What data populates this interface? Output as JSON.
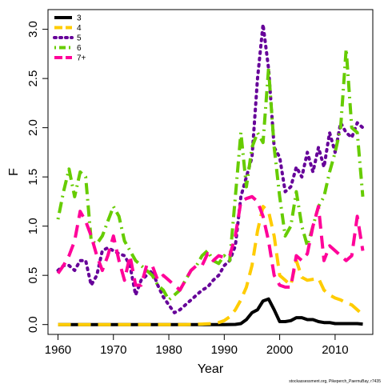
{
  "chart_data": {
    "type": "line",
    "xlabel": "Year",
    "ylabel": "F",
    "xlim": [
      1958.2,
      2016.8
    ],
    "ylim": [
      -0.1,
      3.2
    ],
    "xticks": [
      1960,
      1970,
      1980,
      1990,
      2000,
      2010
    ],
    "yticks": [
      0.0,
      0.5,
      1.0,
      1.5,
      2.0,
      2.5,
      3.0
    ],
    "ytick_labels": [
      "0.0",
      "0.5",
      "1.0",
      "1.5",
      "2.0",
      "2.5",
      "3.0"
    ],
    "legend_position": "top-left",
    "grid": false,
    "credit": "stockassessment.org, Pikeperch_PaernuBay, r7435",
    "series": [
      {
        "name": "3",
        "color": "#000000",
        "dash": "solid",
        "x": [
          1960,
          1965,
          1970,
          1975,
          1980,
          1985,
          1990,
          1992,
          1993,
          1994,
          1995,
          1996,
          1997,
          1998,
          1999,
          2000,
          2001,
          2002,
          2003,
          2004,
          2005,
          2006,
          2007,
          2008,
          2009,
          2010,
          2011,
          2012,
          2013,
          2014,
          2015
        ],
        "values": [
          0,
          0,
          0,
          0,
          0,
          0,
          0,
          0.002,
          0.01,
          0.05,
          0.12,
          0.15,
          0.24,
          0.26,
          0.15,
          0.03,
          0.03,
          0.04,
          0.07,
          0.07,
          0.05,
          0.05,
          0.03,
          0.02,
          0.02,
          0.01,
          0.01,
          0.01,
          0.01,
          0.01,
          0.005
        ]
      },
      {
        "name": "4",
        "color": "#ffcc00",
        "dash": "long",
        "x": [
          1960,
          1970,
          1980,
          1983,
          1986,
          1988,
          1989,
          1990,
          1991,
          1992,
          1993,
          1994,
          1995,
          1996,
          1997,
          1998,
          1999,
          2000,
          2001,
          2002,
          2003,
          2004,
          2005,
          2006,
          2007,
          2008,
          2009,
          2010,
          2011,
          2012,
          2013,
          2014,
          2015
        ],
        "values": [
          0,
          0,
          0,
          0,
          0.005,
          0.01,
          0.02,
          0.04,
          0.08,
          0.15,
          0.25,
          0.38,
          0.6,
          0.95,
          1.2,
          1.15,
          0.9,
          0.5,
          0.45,
          0.4,
          0.65,
          0.48,
          0.45,
          0.46,
          0.47,
          0.35,
          0.3,
          0.27,
          0.25,
          0.22,
          0.2,
          0.15,
          0.1
        ]
      },
      {
        "name": "5",
        "color": "#660099",
        "dash": "dotted",
        "x": [
          1960,
          1961,
          1962,
          1963,
          1964,
          1965,
          1966,
          1967,
          1968,
          1969,
          1970,
          1971,
          1972,
          1973,
          1974,
          1975,
          1976,
          1977,
          1978,
          1979,
          1980,
          1981,
          1982,
          1983,
          1984,
          1985,
          1986,
          1987,
          1988,
          1989,
          1990,
          1991,
          1992,
          1993,
          1994,
          1995,
          1996,
          1997,
          1998,
          1999,
          2000,
          2001,
          2002,
          2003,
          2004,
          2005,
          2006,
          2007,
          2008,
          2009,
          2010,
          2011,
          2012,
          2013,
          2014,
          2015
        ],
        "values": [
          0.55,
          0.6,
          0.6,
          0.55,
          0.65,
          0.65,
          0.4,
          0.5,
          0.75,
          0.78,
          0.75,
          0.72,
          0.7,
          0.6,
          0.3,
          0.45,
          0.5,
          0.55,
          0.4,
          0.28,
          0.2,
          0.12,
          0.15,
          0.2,
          0.25,
          0.3,
          0.35,
          0.38,
          0.45,
          0.5,
          0.6,
          0.65,
          0.8,
          1.3,
          1.5,
          1.7,
          2.5,
          3.05,
          2.6,
          1.8,
          1.7,
          1.35,
          1.4,
          1.6,
          1.5,
          1.75,
          1.55,
          1.8,
          1.6,
          1.95,
          1.75,
          2.05,
          1.95,
          1.9,
          2.05,
          2.0
        ]
      },
      {
        "name": "6",
        "color": "#66cc00",
        "dash": "dashdot",
        "x": [
          1960,
          1961,
          1962,
          1963,
          1964,
          1965,
          1966,
          1967,
          1968,
          1969,
          1970,
          1971,
          1972,
          1973,
          1974,
          1975,
          1976,
          1977,
          1978,
          1979,
          1980,
          1981,
          1982,
          1983,
          1984,
          1985,
          1986,
          1987,
          1988,
          1989,
          1990,
          1991,
          1992,
          1993,
          1994,
          1995,
          1996,
          1997,
          1998,
          1999,
          2000,
          2001,
          2002,
          2003,
          2004,
          2005,
          2006,
          2007,
          2008,
          2009,
          2010,
          2011,
          2012,
          2013,
          2014,
          2015
        ],
        "values": [
          1.07,
          1.35,
          1.58,
          1.3,
          1.55,
          1.5,
          0.85,
          0.82,
          0.9,
          1.05,
          1.2,
          1.1,
          0.85,
          0.75,
          0.65,
          0.6,
          0.55,
          0.5,
          0.4,
          0.35,
          0.25,
          0.3,
          0.35,
          0.45,
          0.55,
          0.6,
          0.7,
          0.75,
          0.65,
          0.62,
          0.7,
          0.65,
          1.3,
          1.95,
          1.4,
          1.8,
          1.95,
          1.85,
          2.6,
          1.8,
          1.3,
          0.9,
          1.0,
          1.35,
          1.0,
          0.8,
          1.0,
          1.2,
          1.3,
          1.55,
          1.75,
          2.0,
          2.8,
          2.0,
          1.95,
          1.3
        ]
      },
      {
        "name": "7+",
        "color": "#ff0099",
        "dash": "long",
        "x": [
          1960,
          1961,
          1962,
          1963,
          1964,
          1965,
          1966,
          1967,
          1968,
          1969,
          1970,
          1971,
          1972,
          1973,
          1974,
          1975,
          1976,
          1977,
          1978,
          1979,
          1980,
          1981,
          1982,
          1983,
          1984,
          1985,
          1986,
          1987,
          1988,
          1989,
          1990,
          1991,
          1992,
          1993,
          1994,
          1995,
          1996,
          1997,
          1998,
          1999,
          2000,
          2001,
          2002,
          2003,
          2004,
          2005,
          2006,
          2007,
          2008,
          2009,
          2010,
          2011,
          2012,
          2013,
          2014,
          2015
        ],
        "values": [
          0.52,
          0.6,
          0.7,
          0.85,
          1.15,
          1.05,
          0.9,
          0.7,
          0.55,
          0.7,
          0.9,
          0.65,
          0.45,
          0.7,
          0.4,
          0.4,
          0.6,
          0.6,
          0.45,
          0.5,
          0.45,
          0.4,
          0.35,
          0.45,
          0.55,
          0.6,
          0.6,
          0.72,
          0.65,
          0.7,
          0.68,
          0.7,
          0.9,
          1.25,
          1.28,
          1.3,
          1.25,
          1.1,
          0.85,
          0.5,
          0.4,
          0.38,
          0.38,
          0.7,
          0.65,
          0.72,
          1.0,
          1.2,
          0.65,
          0.8,
          0.75,
          0.7,
          0.65,
          0.7,
          1.1,
          0.75
        ]
      }
    ]
  }
}
